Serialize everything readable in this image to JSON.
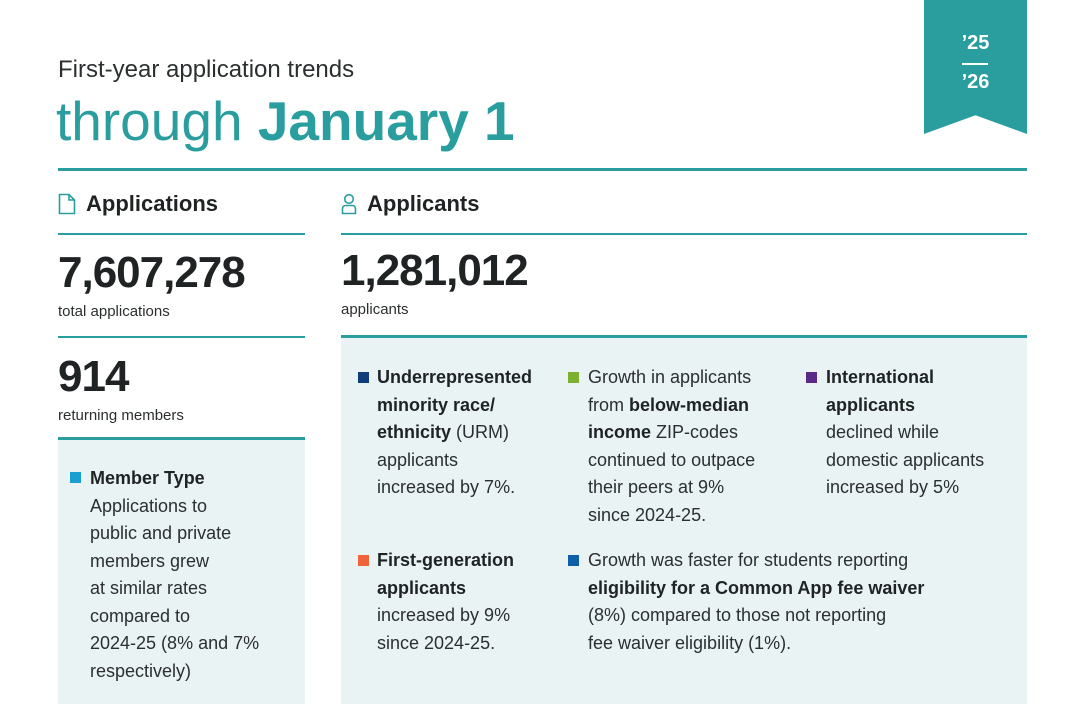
{
  "header": {
    "kicker": "First-year application trends",
    "headline_prefix": "through ",
    "headline_bold": "January 1",
    "ribbon_year_top": "’25",
    "ribbon_year_bottom": "’26"
  },
  "applications": {
    "title": "Applications",
    "icon": "document-icon",
    "total_value": "7,607,278",
    "total_label": "total applications",
    "members_value": "914",
    "members_label": "returning members",
    "member_type": {
      "marker_color": "#1a9fd1",
      "title": "Member Type",
      "lines": [
        "Applications to",
        "public and private",
        "members grew",
        "at similar rates",
        "compared to",
        "2024-25 (8% and 7%",
        "respectively)"
      ]
    }
  },
  "applicants": {
    "title": "Applicants",
    "icon": "person-icon",
    "total_value": "1,281,012",
    "total_label": "applicants",
    "urm": {
      "marker_color": "#0f3d7a",
      "l1": "Underrepresented",
      "l2": "minority race/",
      "l3_bold": "ethnicity",
      "l3_rest": " (URM)",
      "l4": "applicants",
      "l5": "increased by 7%."
    },
    "income": {
      "marker_color": "#7bb031",
      "l1": "Growth in applicants",
      "l2_pre": "from ",
      "l2_bold": "below-median",
      "l3_bold": "income",
      "l3_rest": " ZIP-codes",
      "l4": "continued to outpace",
      "l5": "their peers at 9%",
      "l6": "since 2024-25."
    },
    "international": {
      "marker_color": "#5b2a86",
      "l1": "International",
      "l2": "applicants",
      "l3": "declined while",
      "l4": "domestic applicants",
      "l5": "increased by 5%"
    },
    "firstgen": {
      "marker_color": "#f0643c",
      "l1": "First-generation",
      "l2": "applicants",
      "l3": "increased by 9%",
      "l4": "since 2024-25."
    },
    "feewaiver": {
      "marker_color": "#0f5fa8",
      "l1": "Growth was faster for students reporting",
      "l2_bold": "eligibility for a Common App fee waiver",
      "l3": "(8%) compared to those not reporting",
      "l4": "fee waiver eligibility (1%)."
    }
  },
  "colors": {
    "accent": "#2a9d9e",
    "panel": "#e9f3f4"
  }
}
